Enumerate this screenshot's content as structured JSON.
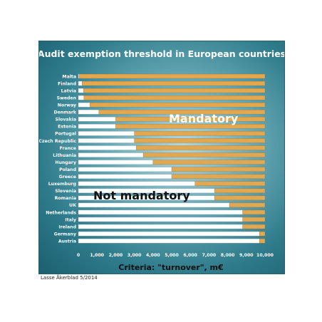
{
  "credit": "Lasse Åkerblad 5/2014",
  "colors": {
    "mandatory": "#e3a74f",
    "not_mandatory": "#ffffff",
    "text_light": "#ffffff",
    "text_dark": "#111111"
  },
  "chart_data": {
    "type": "bar",
    "orientation": "horizontal",
    "stacked": true,
    "title": "Audit exemption threshold in European countries",
    "xlabel": "Criteria: \"turnover\", m€",
    "xlim": [
      0,
      10000
    ],
    "xticks": [
      0,
      1000,
      2000,
      3000,
      4000,
      5000,
      6000,
      7000,
      8000,
      9000,
      10000
    ],
    "xtick_labels": [
      "0",
      "1,000",
      "2,000",
      "3,000",
      "4,000",
      "5,000",
      "6,000",
      "7,000",
      "8,000",
      "9,000",
      "10,000"
    ],
    "region_labels": {
      "mandatory": "Mandatory",
      "not_mandatory": "Not mandatory"
    },
    "categories": [
      "Malta",
      "Finland",
      "Latvia",
      "Sweden",
      "Norway",
      "Denmark",
      "Slovakia",
      "Estonia",
      "Portugal",
      "Czech Republic",
      "France",
      "Lithuania",
      "Hungary",
      "Poland",
      "Greece",
      "Luxemburg",
      "Slovenia",
      "Romania",
      "UK",
      "Netherlands",
      "Italy",
      "Ireland",
      "Germany",
      "Austria"
    ],
    "values": [
      40,
      200,
      280,
      300,
      620,
      1100,
      2000,
      2000,
      3000,
      3000,
      3100,
      3475,
      4000,
      5000,
      5000,
      6250,
      7300,
      7300,
      8100,
      8800,
      8800,
      8800,
      9700,
      9700
    ]
  }
}
